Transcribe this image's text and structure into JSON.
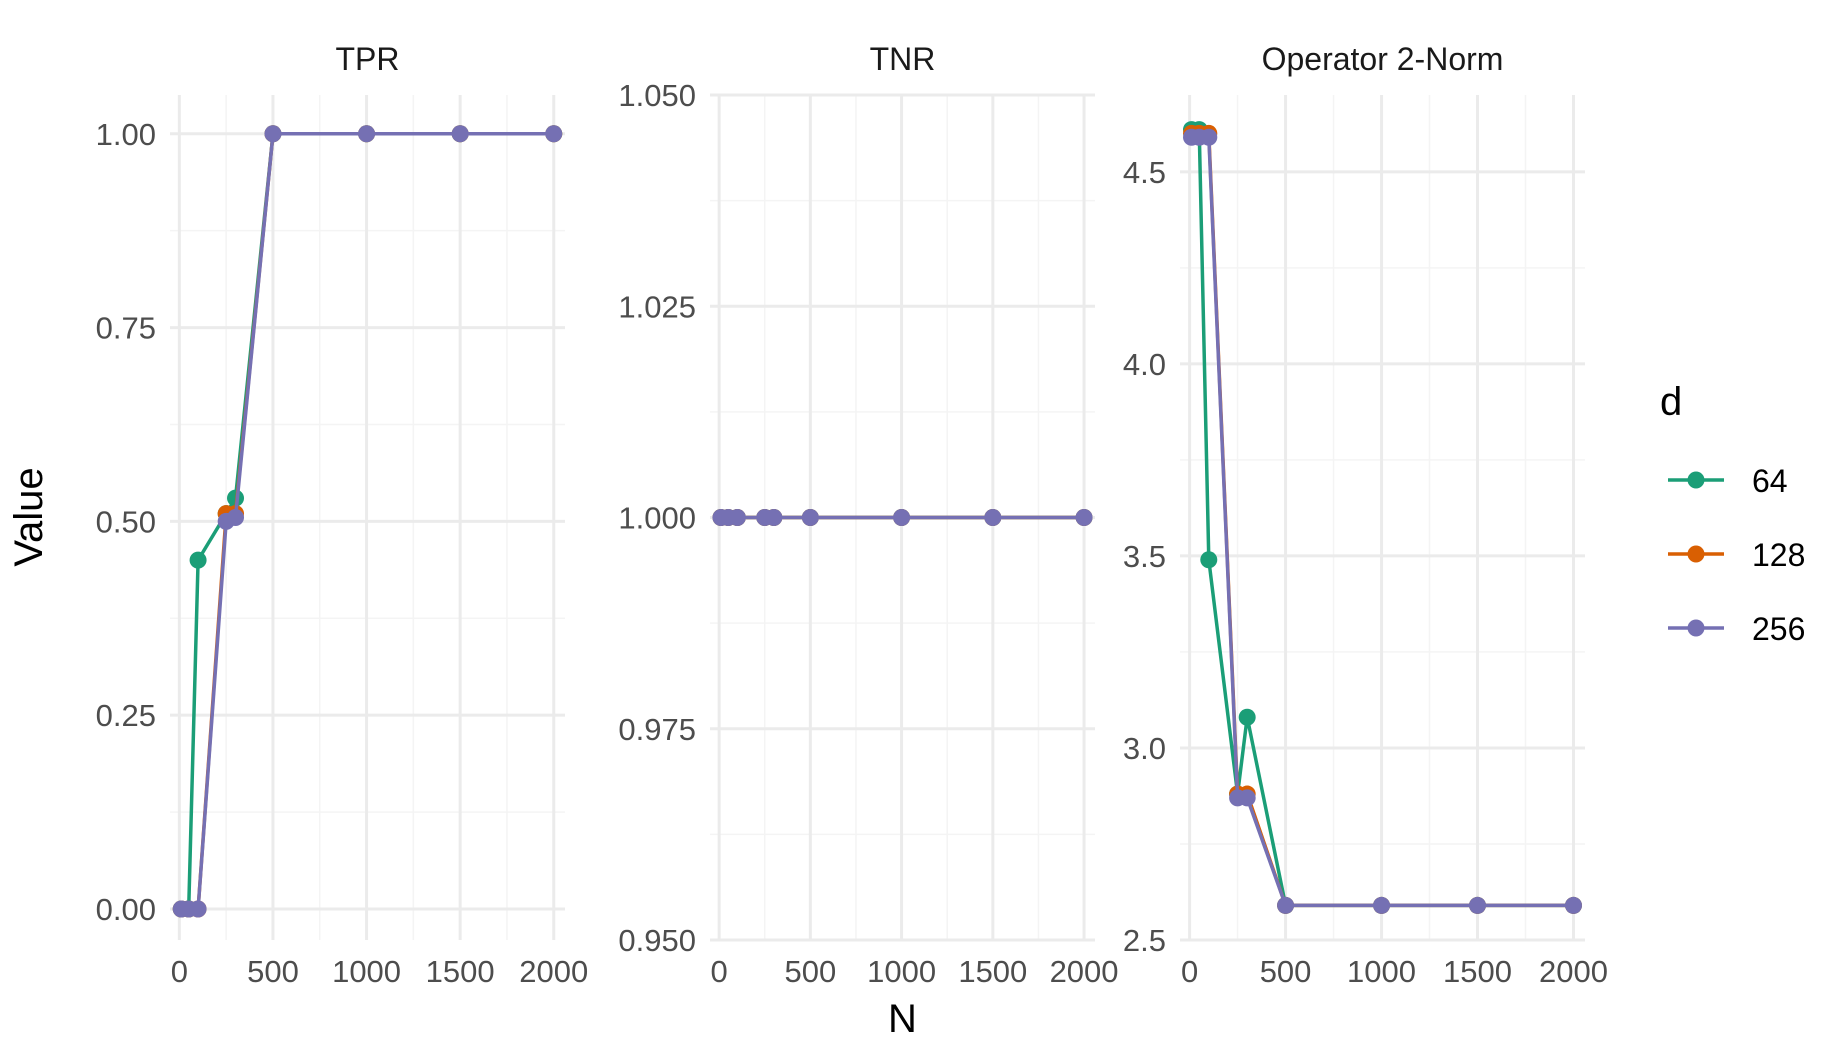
{
  "chart_data": {
    "type": "line",
    "layout": "facets",
    "xlabel": "N",
    "ylabel": "Value",
    "legend": {
      "title": "d",
      "position": "right",
      "entries": [
        "64",
        "128",
        "256"
      ]
    },
    "colors": {
      "64": "#1B9E77",
      "128": "#D95F02",
      "256": "#7570B3",
      "grid_major": "#EBEBEB",
      "grid_minor": "#F4F4F4"
    },
    "grid": true,
    "x": [
      10,
      50,
      100,
      250,
      300,
      500,
      1000,
      1500,
      2000
    ],
    "xticks": [
      0,
      500,
      1000,
      1500,
      2000
    ],
    "xlim": [
      -50,
      2060
    ],
    "facets": [
      {
        "title": "TPR",
        "ylim": [
          -0.04,
          1.05
        ],
        "yticks": [
          0.0,
          0.25,
          0.5,
          0.75,
          1.0
        ],
        "ytick_labels": [
          "0.00",
          "0.25",
          "0.50",
          "0.75",
          "1.00"
        ],
        "series": [
          {
            "name": "64",
            "values": [
              0,
              0,
              0.45,
              0.51,
              0.53,
              1,
              1,
              1,
              1
            ]
          },
          {
            "name": "128",
            "values": [
              0,
              0,
              0,
              0.51,
              0.51,
              1,
              1,
              1,
              1
            ]
          },
          {
            "name": "256",
            "values": [
              0,
              0,
              0,
              0.5,
              0.505,
              1,
              1,
              1,
              1
            ]
          }
        ]
      },
      {
        "title": "TNR",
        "ylim": [
          0.95,
          1.05
        ],
        "yticks": [
          0.95,
          0.975,
          1.0,
          1.025,
          1.05
        ],
        "ytick_labels": [
          "0.950",
          "0.975",
          "1.000",
          "1.025",
          "1.050"
        ],
        "series": [
          {
            "name": "64",
            "values": [
              1,
              1,
              1,
              1,
              1,
              1,
              1,
              1,
              1
            ]
          },
          {
            "name": "128",
            "values": [
              1,
              1,
              1,
              1,
              1,
              1,
              1,
              1,
              1
            ]
          },
          {
            "name": "256",
            "values": [
              1,
              1,
              1,
              1,
              1,
              1,
              1,
              1,
              1
            ]
          }
        ]
      },
      {
        "title": "Operator 2-Norm",
        "ylim": [
          2.5,
          4.7
        ],
        "yticks": [
          2.5,
          3.0,
          3.5,
          4.0,
          4.5
        ],
        "ytick_labels": [
          "2.5",
          "3.0",
          "3.5",
          "4.0",
          "4.5"
        ],
        "series": [
          {
            "name": "64",
            "values": [
              4.61,
              4.61,
              3.49,
              2.88,
              3.08,
              2.59,
              2.59,
              2.59,
              2.59
            ]
          },
          {
            "name": "128",
            "values": [
              4.6,
              4.6,
              4.6,
              2.88,
              2.88,
              2.59,
              2.59,
              2.59,
              2.59
            ]
          },
          {
            "name": "256",
            "values": [
              4.59,
              4.59,
              4.59,
              2.87,
              2.87,
              2.59,
              2.59,
              2.59,
              2.59
            ]
          }
        ]
      }
    ]
  }
}
